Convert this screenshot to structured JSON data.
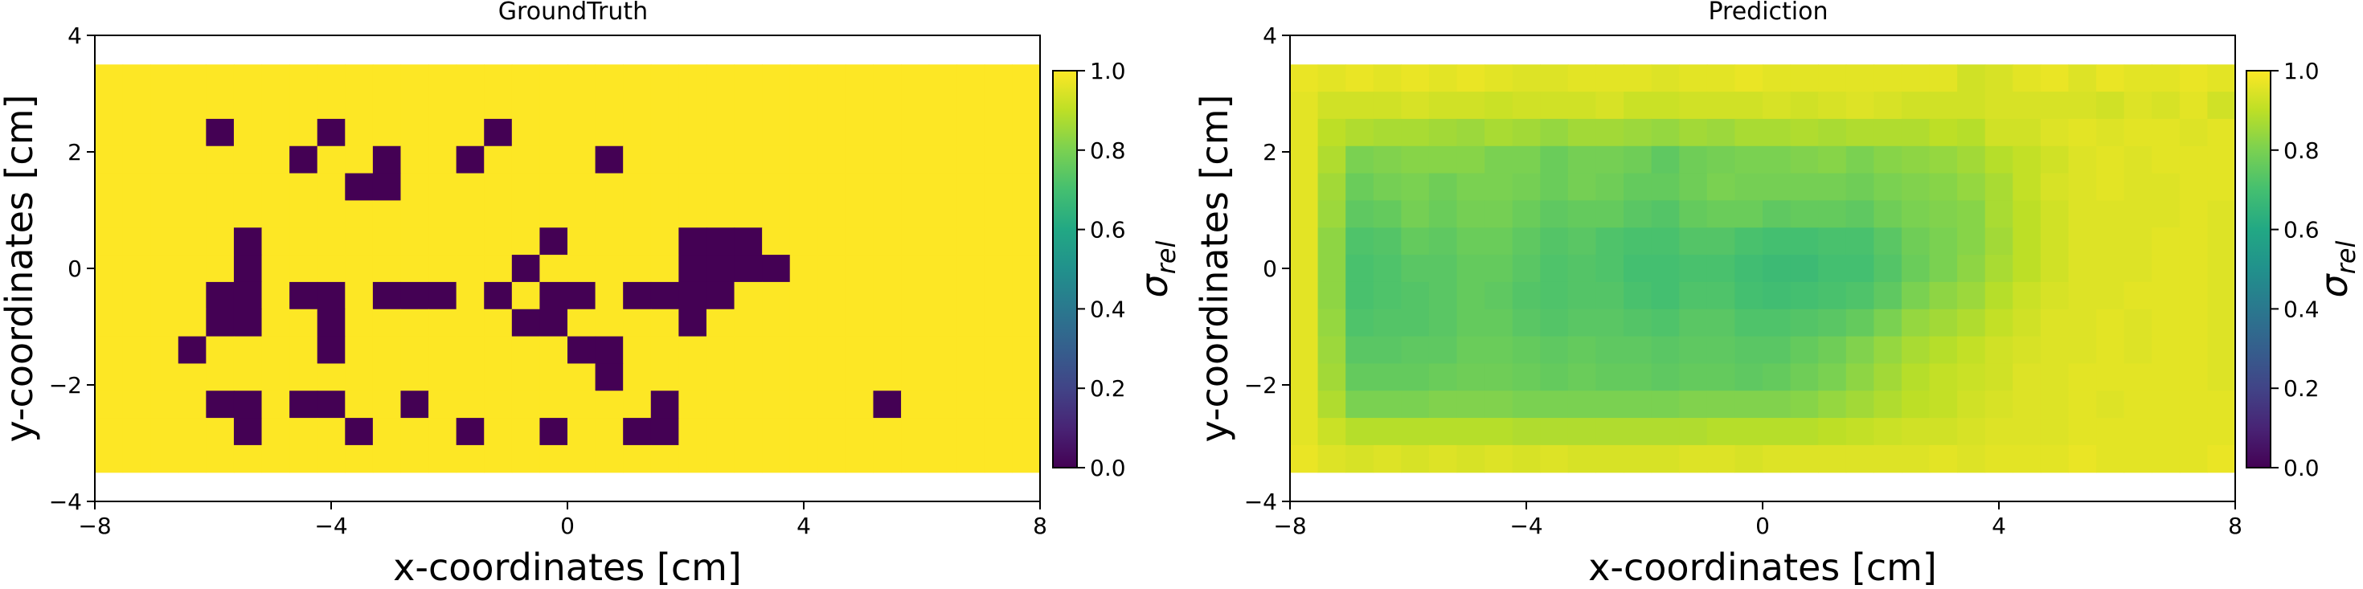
{
  "chart_data": [
    {
      "type": "heatmap",
      "title": "GroundTruth",
      "xlabel": "x-coordinates [cm]",
      "ylabel": "y-coordinates [cm]",
      "xlim": [
        -8,
        8
      ],
      "ylim": [
        -4,
        4
      ],
      "x_ticks": [
        -8,
        -4,
        0,
        4,
        8
      ],
      "y_ticks": [
        -4,
        -2,
        0,
        2,
        4
      ],
      "x_tick_labels": [
        "−8",
        "−4",
        "0",
        "4",
        "8"
      ],
      "y_tick_labels": [
        "−4",
        "−2",
        "0",
        "2",
        "4"
      ],
      "grid": false,
      "colormap": "viridis",
      "colorbar": {
        "label": "σrel",
        "ticks": [
          0.0,
          0.2,
          0.4,
          0.6,
          0.8,
          1.0
        ],
        "tick_labels": [
          "0.0",
          "0.2",
          "0.4",
          "0.6",
          "0.8",
          "1.0"
        ]
      },
      "cell_size_cm": 0.47,
      "x_extent": [
        -8,
        8
      ],
      "y_extent": [
        -3.5,
        3.5
      ],
      "n_cols": 34,
      "n_rows": 15,
      "row_order": "top-to-bottom",
      "values": [
        "1111111111111111111111111111111111",
        "1111111111111111111111111111111111",
        "1111011101111101111111111111111111",
        "1111111011011011110111111111111111",
        "1111111110011111111111111111111111",
        "1111111111111111111111111111111111",
        "1111101111111111011110001111111111",
        "1111101111111110111110000111111111",
        "1111001001000101001000011111111111",
        "1111001101111110011110111111111111",
        "1110111101111111100111111111111111",
        "1111111111111111110111111111111111",
        "1111001001101111111101111111011111",
        "1111101110111011011001111111111111",
        "1111111111111111111111111111111111"
      ]
    },
    {
      "type": "heatmap",
      "title": "Prediction",
      "xlabel": "x-coordinates [cm]",
      "ylabel": "y-coordinates [cm]",
      "xlim": [
        -8,
        8
      ],
      "ylim": [
        -4,
        4
      ],
      "x_ticks": [
        -8,
        -4,
        0,
        4,
        8
      ],
      "y_ticks": [
        -4,
        -2,
        0,
        2,
        4
      ],
      "x_tick_labels": [
        "−8",
        "−4",
        "0",
        "4",
        "8"
      ],
      "y_tick_labels": [
        "−4",
        "−2",
        "0",
        "2",
        "4"
      ],
      "grid": false,
      "colormap": "viridis",
      "colorbar": {
        "label": "σrel",
        "ticks": [
          0.0,
          0.2,
          0.4,
          0.6,
          0.8,
          1.0
        ],
        "tick_labels": [
          "0.0",
          "0.2",
          "0.4",
          "0.6",
          "0.8",
          "1.0"
        ]
      },
      "cell_size_cm": 0.47,
      "x_extent": [
        -8,
        8
      ],
      "y_extent": [
        -3.5,
        3.5
      ],
      "n_cols": 34,
      "n_rows": 15,
      "row_order": "top-to-bottom",
      "values": [
        [
          0.97,
          0.96,
          0.97,
          0.96,
          0.97,
          0.96,
          0.97,
          0.96,
          0.95,
          0.95,
          0.96,
          0.96,
          0.96,
          0.95,
          0.96,
          0.96,
          0.97,
          0.96,
          0.96,
          0.96,
          0.96,
          0.96,
          0.96,
          0.96,
          0.93,
          0.94,
          0.96,
          0.97,
          0.95,
          0.97,
          0.96,
          0.96,
          0.97,
          0.96
        ],
        [
          0.96,
          0.93,
          0.93,
          0.93,
          0.94,
          0.93,
          0.93,
          0.92,
          0.93,
          0.93,
          0.93,
          0.94,
          0.92,
          0.92,
          0.93,
          0.93,
          0.93,
          0.94,
          0.93,
          0.94,
          0.95,
          0.94,
          0.93,
          0.93,
          0.93,
          0.94,
          0.94,
          0.94,
          0.94,
          0.93,
          0.95,
          0.94,
          0.96,
          0.93
        ],
        [
          0.96,
          0.9,
          0.88,
          0.87,
          0.87,
          0.86,
          0.85,
          0.87,
          0.86,
          0.84,
          0.86,
          0.86,
          0.85,
          0.84,
          0.86,
          0.85,
          0.87,
          0.87,
          0.88,
          0.87,
          0.88,
          0.88,
          0.88,
          0.9,
          0.89,
          0.93,
          0.93,
          0.95,
          0.96,
          0.95,
          0.96,
          0.96,
          0.95,
          0.96
        ],
        [
          0.96,
          0.88,
          0.8,
          0.81,
          0.82,
          0.82,
          0.82,
          0.8,
          0.8,
          0.77,
          0.79,
          0.79,
          0.78,
          0.75,
          0.78,
          0.79,
          0.8,
          0.8,
          0.81,
          0.82,
          0.8,
          0.82,
          0.83,
          0.84,
          0.86,
          0.89,
          0.91,
          0.93,
          0.95,
          0.96,
          0.95,
          0.96,
          0.96,
          0.96
        ],
        [
          0.96,
          0.86,
          0.77,
          0.79,
          0.8,
          0.78,
          0.8,
          0.8,
          0.79,
          0.77,
          0.79,
          0.78,
          0.76,
          0.76,
          0.78,
          0.8,
          0.79,
          0.79,
          0.79,
          0.79,
          0.78,
          0.8,
          0.81,
          0.82,
          0.84,
          0.87,
          0.91,
          0.94,
          0.95,
          0.96,
          0.95,
          0.95,
          0.96,
          0.96
        ],
        [
          0.96,
          0.85,
          0.75,
          0.76,
          0.79,
          0.77,
          0.79,
          0.79,
          0.77,
          0.75,
          0.76,
          0.76,
          0.74,
          0.73,
          0.76,
          0.77,
          0.77,
          0.75,
          0.76,
          0.76,
          0.75,
          0.78,
          0.8,
          0.81,
          0.82,
          0.87,
          0.9,
          0.93,
          0.95,
          0.95,
          0.95,
          0.95,
          0.96,
          0.95
        ],
        [
          0.96,
          0.83,
          0.72,
          0.73,
          0.76,
          0.75,
          0.77,
          0.77,
          0.75,
          0.73,
          0.74,
          0.72,
          0.71,
          0.71,
          0.73,
          0.73,
          0.71,
          0.7,
          0.7,
          0.71,
          0.71,
          0.74,
          0.78,
          0.8,
          0.82,
          0.86,
          0.9,
          0.93,
          0.95,
          0.95,
          0.95,
          0.96,
          0.96,
          0.95
        ],
        [
          0.96,
          0.83,
          0.71,
          0.72,
          0.74,
          0.74,
          0.76,
          0.76,
          0.74,
          0.72,
          0.73,
          0.72,
          0.7,
          0.7,
          0.71,
          0.71,
          0.69,
          0.68,
          0.68,
          0.7,
          0.7,
          0.73,
          0.77,
          0.8,
          0.83,
          0.87,
          0.9,
          0.93,
          0.95,
          0.95,
          0.95,
          0.96,
          0.96,
          0.95
        ],
        [
          0.96,
          0.83,
          0.71,
          0.72,
          0.73,
          0.74,
          0.76,
          0.75,
          0.73,
          0.72,
          0.73,
          0.73,
          0.71,
          0.7,
          0.72,
          0.72,
          0.7,
          0.69,
          0.7,
          0.71,
          0.72,
          0.75,
          0.8,
          0.83,
          0.85,
          0.89,
          0.92,
          0.94,
          0.95,
          0.95,
          0.96,
          0.96,
          0.96,
          0.95
        ],
        [
          0.96,
          0.84,
          0.72,
          0.73,
          0.73,
          0.74,
          0.76,
          0.76,
          0.74,
          0.73,
          0.74,
          0.74,
          0.73,
          0.72,
          0.74,
          0.74,
          0.72,
          0.72,
          0.73,
          0.74,
          0.76,
          0.8,
          0.84,
          0.86,
          0.88,
          0.91,
          0.93,
          0.95,
          0.95,
          0.96,
          0.95,
          0.96,
          0.96,
          0.95
        ],
        [
          0.96,
          0.85,
          0.74,
          0.74,
          0.75,
          0.75,
          0.77,
          0.77,
          0.76,
          0.75,
          0.76,
          0.75,
          0.75,
          0.74,
          0.75,
          0.75,
          0.74,
          0.74,
          0.76,
          0.78,
          0.81,
          0.84,
          0.87,
          0.89,
          0.91,
          0.93,
          0.94,
          0.95,
          0.95,
          0.96,
          0.95,
          0.96,
          0.96,
          0.95
        ],
        [
          0.96,
          0.86,
          0.76,
          0.76,
          0.76,
          0.77,
          0.78,
          0.78,
          0.77,
          0.76,
          0.77,
          0.76,
          0.76,
          0.75,
          0.76,
          0.76,
          0.75,
          0.76,
          0.78,
          0.8,
          0.83,
          0.86,
          0.89,
          0.91,
          0.92,
          0.93,
          0.95,
          0.95,
          0.96,
          0.96,
          0.96,
          0.96,
          0.96,
          0.95
        ],
        [
          0.96,
          0.88,
          0.8,
          0.8,
          0.8,
          0.81,
          0.81,
          0.81,
          0.8,
          0.8,
          0.8,
          0.8,
          0.8,
          0.8,
          0.81,
          0.81,
          0.81,
          0.81,
          0.82,
          0.84,
          0.86,
          0.88,
          0.9,
          0.91,
          0.93,
          0.94,
          0.95,
          0.95,
          0.96,
          0.95,
          0.96,
          0.96,
          0.96,
          0.96
        ],
        [
          0.96,
          0.92,
          0.89,
          0.89,
          0.89,
          0.89,
          0.89,
          0.89,
          0.88,
          0.88,
          0.88,
          0.88,
          0.88,
          0.88,
          0.88,
          0.89,
          0.89,
          0.89,
          0.89,
          0.9,
          0.91,
          0.92,
          0.93,
          0.93,
          0.94,
          0.95,
          0.95,
          0.95,
          0.96,
          0.96,
          0.96,
          0.96,
          0.96,
          0.96
        ],
        [
          0.97,
          0.95,
          0.94,
          0.95,
          0.94,
          0.95,
          0.94,
          0.95,
          0.94,
          0.95,
          0.94,
          0.94,
          0.94,
          0.94,
          0.95,
          0.95,
          0.94,
          0.95,
          0.95,
          0.95,
          0.95,
          0.95,
          0.95,
          0.96,
          0.95,
          0.96,
          0.96,
          0.96,
          0.97,
          0.96,
          0.96,
          0.96,
          0.96,
          0.97
        ]
      ]
    }
  ]
}
